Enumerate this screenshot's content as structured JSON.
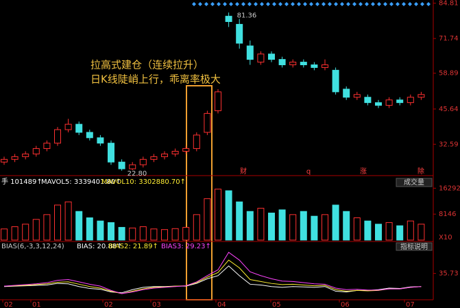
{
  "chart_data": {
    "type": "candlestick",
    "annotation": [
      "拉高式建仓（连续拉升）",
      "日K线陡峭上行，乖离率极大"
    ],
    "price": {
      "ylim": [
        22,
        86
      ],
      "yticks": [
        84.81,
        71.74,
        58.89,
        45.64,
        32.59
      ],
      "open": [
        26,
        27,
        28,
        29,
        31,
        33,
        38,
        40,
        37,
        35,
        33,
        26,
        23.5,
        25,
        27,
        28,
        29,
        30,
        31,
        37,
        45,
        80,
        77,
        69,
        63,
        66,
        64,
        62,
        63,
        62,
        61,
        60,
        53,
        50,
        50,
        48,
        47,
        49,
        48,
        50
      ],
      "close": [
        27,
        28,
        29,
        31,
        33,
        38,
        40,
        37,
        35,
        33,
        26,
        23.5,
        25,
        27,
        28,
        29,
        30,
        31,
        36,
        44,
        52,
        78,
        70,
        64,
        66,
        64,
        62,
        63,
        62,
        61,
        62,
        52,
        50,
        51,
        48,
        47,
        49,
        48,
        50,
        51
      ],
      "high": [
        28,
        29,
        30,
        32,
        34,
        39,
        42,
        41,
        38,
        36,
        34,
        27,
        26,
        28,
        29,
        30,
        31,
        32,
        37,
        45,
        53,
        81.36,
        79,
        71,
        67,
        67,
        65,
        64,
        64,
        63,
        64,
        61,
        54,
        52,
        51,
        49,
        50,
        50,
        51,
        52
      ],
      "low": [
        25,
        26,
        27,
        28,
        30,
        32,
        37,
        36,
        34,
        32,
        25,
        22.8,
        23,
        24,
        26,
        27,
        28,
        29,
        30,
        36,
        44,
        76,
        68,
        62,
        62,
        63,
        61,
        61,
        61,
        60,
        60,
        51,
        49,
        49,
        47,
        46,
        46,
        47,
        47,
        49
      ],
      "max_label": "81.36",
      "min_label": "22.80"
    },
    "events": [
      "财",
      "q",
      "涨",
      "除"
    ],
    "volume": {
      "title": "成交量",
      "header": [
        "手 101489↑",
        "MAVOL5: 3339401.80↑",
        "MAVOL10: 3302880.70↑"
      ],
      "ylim": [
        0,
        16800
      ],
      "yticks": [
        16292,
        8146
      ],
      "unit": "X10",
      "values": [
        3500,
        4200,
        5000,
        6500,
        8000,
        11000,
        12000,
        9000,
        7000,
        6000,
        5500,
        4000,
        3800,
        4200,
        3500,
        3300,
        3600,
        4000,
        8000,
        13000,
        16000,
        15500,
        12000,
        9000,
        10000,
        8500,
        9500,
        8000,
        9000,
        7500,
        8000,
        11000,
        9000,
        7000,
        6000,
        5000,
        5500,
        4500,
        6000,
        5000
      ]
    },
    "bias": {
      "header": [
        "BIAS(6,-3,3,12,24)",
        "BIAS: 20.88↑",
        "BIAS2: 21.89↑",
        "BIAS3: 29.23↑"
      ],
      "title": "指标说明",
      "ylim": [
        -32,
        95
      ],
      "yticks": [
        35.73
      ],
      "series": [
        {
          "name": "BIAS",
          "color": "#ffffff",
          "values": [
            2,
            3,
            4,
            5,
            6,
            10,
            9,
            2,
            -3,
            -5,
            -12,
            -14,
            -6,
            0,
            2,
            2,
            3,
            3,
            10,
            22,
            30,
            55,
            30,
            8,
            6,
            2,
            0,
            2,
            1,
            0,
            2,
            -10,
            -12,
            -8,
            -8,
            -6,
            -2,
            -3,
            1,
            2
          ]
        },
        {
          "name": "BIAS2",
          "color": "#ffee33",
          "values": [
            3,
            4,
            5,
            7,
            9,
            13,
            14,
            8,
            2,
            -2,
            -10,
            -16,
            -10,
            -4,
            0,
            1,
            3,
            4,
            12,
            26,
            38,
            70,
            50,
            20,
            15,
            10,
            7,
            8,
            6,
            4,
            5,
            -6,
            -10,
            -8,
            -9,
            -8,
            -4,
            -4,
            0,
            2
          ]
        },
        {
          "name": "BIAS3",
          "color": "#ff44ff",
          "values": [
            3,
            5,
            7,
            9,
            12,
            18,
            20,
            14,
            8,
            3,
            -8,
            -16,
            -12,
            -6,
            -2,
            0,
            2,
            4,
            14,
            30,
            45,
            90,
            70,
            40,
            30,
            22,
            16,
            15,
            12,
            9,
            8,
            -2,
            -6,
            -5,
            -7,
            -7,
            -4,
            -4,
            0,
            2
          ]
        }
      ]
    },
    "x_labels": [
      "02",
      "01",
      "02",
      "03",
      "04",
      "05",
      "06",
      "07"
    ]
  }
}
